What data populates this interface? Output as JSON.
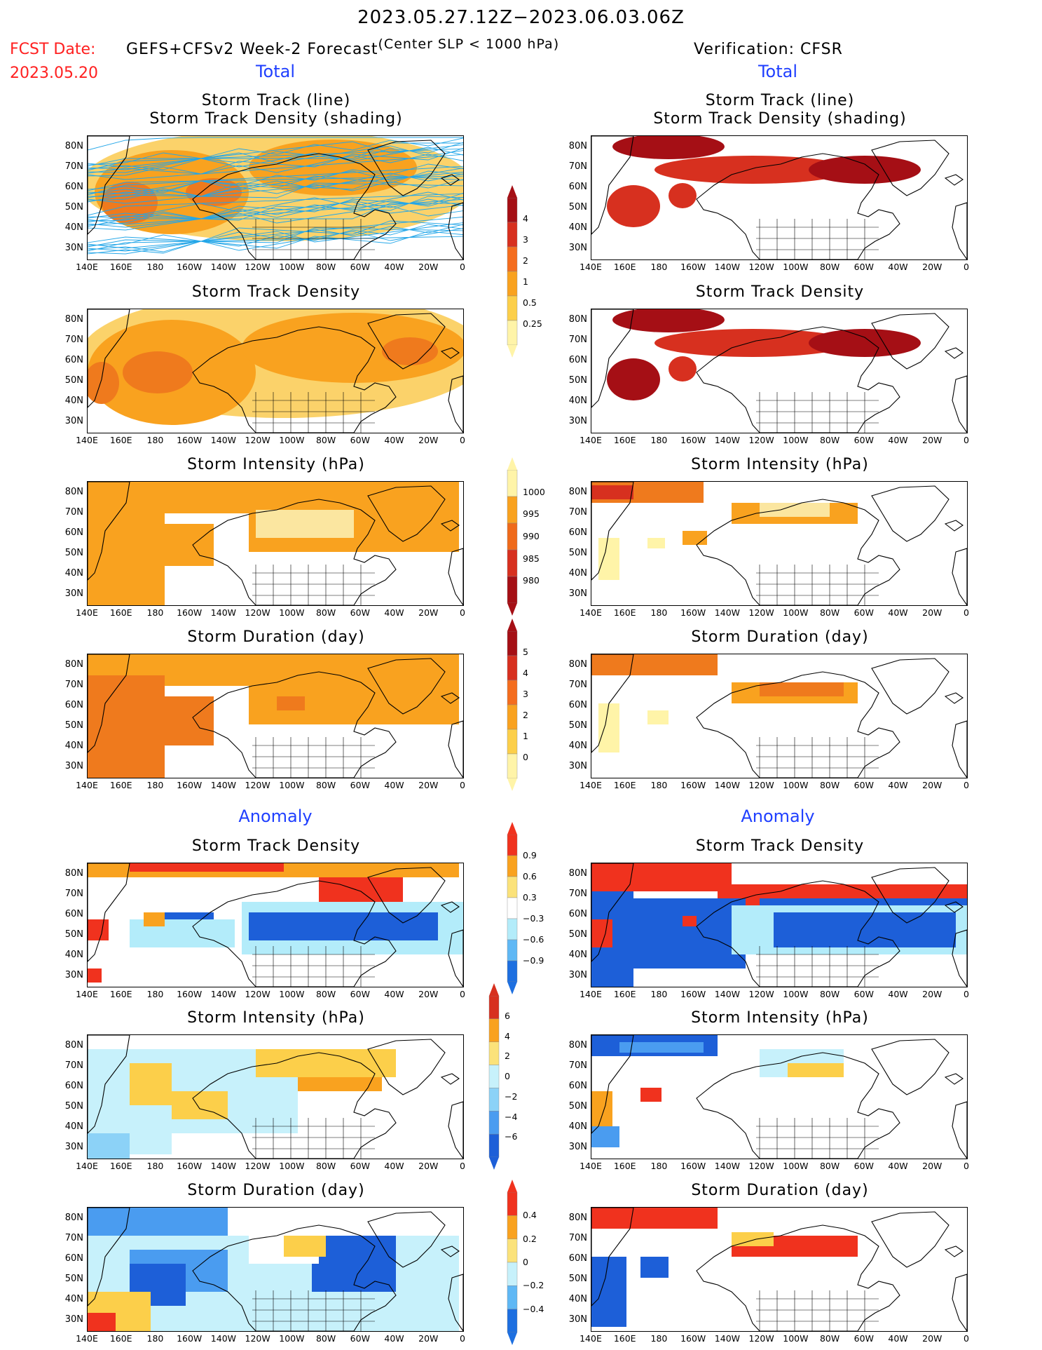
{
  "header": {
    "period": "2023.05.27.12Z−2023.06.03.06Z",
    "fcst_label": "FCST Date:",
    "fcst_date": "2023.05.20",
    "model": "GEFS+CFSv2 Week-2 Forecast",
    "criterion": "(Center SLP < 1000 hPa)",
    "verification": "Verification: CFSR"
  },
  "sections": {
    "total": "Total",
    "anomaly": "Anomaly"
  },
  "panel_titles": {
    "track_line": "Storm Track (line)",
    "track_shading": "Storm Track Density (shading)",
    "density": "Storm Track Density",
    "intensity": "Storm Intensity (hPa)",
    "duration": "Storm Duration (day)"
  },
  "axes": {
    "lat_labels": [
      "80N",
      "70N",
      "60N",
      "50N",
      "40N",
      "30N"
    ],
    "lon_labels": [
      "140E",
      "160E",
      "180",
      "160W",
      "140W",
      "120W",
      "100W",
      "80W",
      "60W",
      "40W",
      "20W",
      "0"
    ]
  },
  "colorbars": {
    "density_total": {
      "labels": [
        "4",
        "3",
        "2",
        "1",
        "0.5",
        "0.25"
      ],
      "colors": [
        "#a50f15",
        "#d7301f",
        "#f46d1e",
        "#f9a21f",
        "#fccf4a",
        "#fff4a8"
      ]
    },
    "intensity_total": {
      "labels": [
        "1000",
        "995",
        "990",
        "985",
        "980"
      ],
      "colors": [
        "#fff4a8",
        "#f9a21f",
        "#ef6a1a",
        "#d7301f",
        "#a50f15"
      ]
    },
    "duration_total": {
      "labels": [
        "5",
        "4",
        "3",
        "2",
        "1",
        "0"
      ],
      "colors": [
        "#a50f15",
        "#d7301f",
        "#f46d1e",
        "#f9a21f",
        "#fccf4a",
        "#fff4a8"
      ]
    },
    "density_anom": {
      "labels": [
        "0.9",
        "0.6",
        "0.3",
        "−0.3",
        "−0.6",
        "−0.9"
      ],
      "colors": [
        "#f0321e",
        "#f9a21f",
        "#fbe27a",
        "#ffffff",
        "#b3ecfa",
        "#5fb8f5",
        "#1d6fe0"
      ]
    },
    "intensity_anom": {
      "labels": [
        "6",
        "4",
        "2",
        "0",
        "−2",
        "−4",
        "−6"
      ],
      "colors": [
        "#d7301f",
        "#f9a21f",
        "#fbe27a",
        "#c7f1fb",
        "#8cd2f7",
        "#4a9cf0",
        "#1d5fd8"
      ]
    },
    "duration_anom": {
      "labels": [
        "0.4",
        "0.2",
        "0",
        "−0.2",
        "−0.4"
      ],
      "colors": [
        "#f0321e",
        "#f9a21f",
        "#fbe27a",
        "#c7f1fb",
        "#5fb8f5",
        "#1d6fe0"
      ]
    }
  }
}
